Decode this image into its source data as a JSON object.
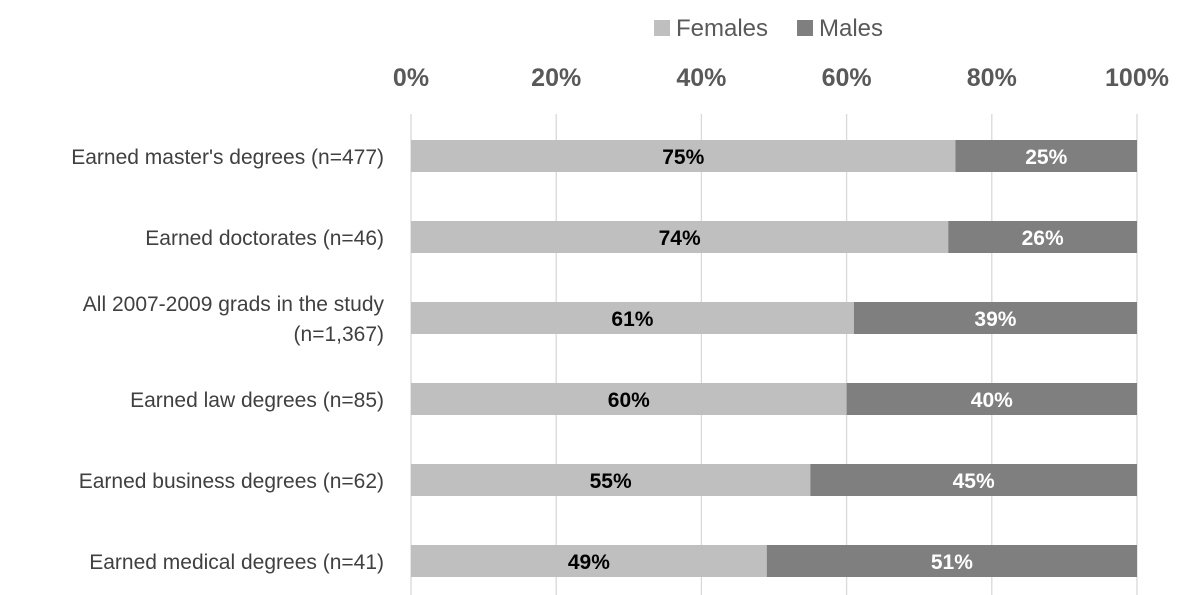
{
  "chart_data": {
    "type": "bar",
    "orientation": "horizontal",
    "stacked": true,
    "categories": [
      "Earned master's degrees (n=477)",
      "Earned doctorates (n=46)",
      "All 2007-2009 grads in the study (n=1,367)",
      "Earned law degrees (n=85)",
      "Earned business degrees (n=62)",
      "Earned medical degrees (n=41)"
    ],
    "category_lines": [
      [
        "Earned master's degrees (n=477)"
      ],
      [
        "Earned doctorates (n=46)"
      ],
      [
        "All 2007-2009 grads in the study",
        "(n=1,367)"
      ],
      [
        "Earned law degrees (n=85)"
      ],
      [
        "Earned business degrees (n=62)"
      ],
      [
        "Earned medical degrees (n=41)"
      ]
    ],
    "series": [
      {
        "name": "Females",
        "color": "#bfbfbf",
        "label_color": "#000000",
        "values": [
          75,
          74,
          61,
          60,
          55,
          49
        ],
        "labels": [
          "75%",
          "74%",
          "61%",
          "60%",
          "55%",
          "49%"
        ]
      },
      {
        "name": "Males",
        "color": "#7f7f7f",
        "label_color": "#ffffff",
        "values": [
          25,
          26,
          39,
          40,
          45,
          51
        ],
        "labels": [
          "25%",
          "26%",
          "39%",
          "40%",
          "45%",
          "51%"
        ]
      }
    ],
    "x_ticks": [
      0,
      20,
      40,
      60,
      80,
      100
    ],
    "x_tick_labels": [
      "0%",
      "20%",
      "40%",
      "60%",
      "80%",
      "100%"
    ],
    "xlim": [
      0,
      100
    ],
    "x_axis_position": "top",
    "grid": true,
    "gridline_color": "#d9d9d9",
    "legend_position": "top"
  }
}
